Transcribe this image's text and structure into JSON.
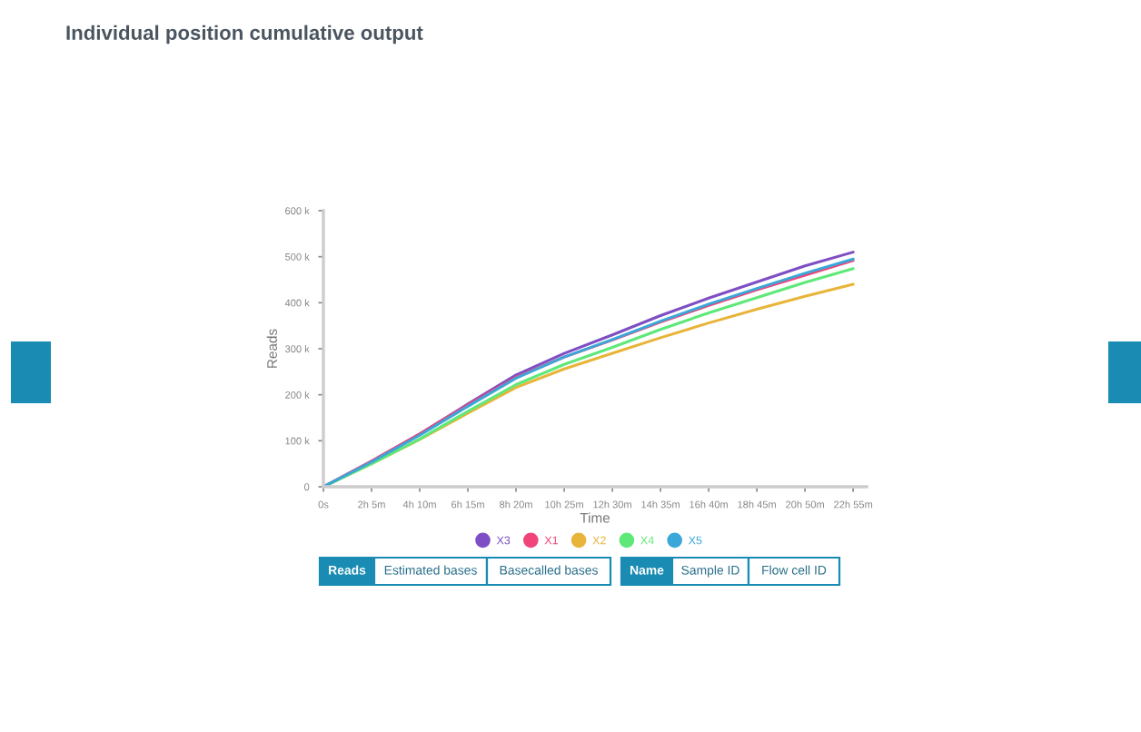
{
  "chart_data": {
    "type": "line",
    "title": "Individual position cumulative output",
    "xlabel": "Time",
    "ylabel": "Reads",
    "categories": [
      "0s",
      "2h 5m",
      "4h 10m",
      "6h 15m",
      "8h 20m",
      "10h 25m",
      "12h 30m",
      "14h 35m",
      "16h 40m",
      "18h 45m",
      "20h 50m",
      "22h 55m"
    ],
    "series": [
      {
        "name": "X3",
        "color": "#7e4fc4",
        "values": [
          0,
          55000,
          115000,
          180000,
          243000,
          290000,
          330000,
          372000,
          410000,
          445000,
          480000,
          510000
        ]
      },
      {
        "name": "X1",
        "color": "#f0457a",
        "values": [
          0,
          56000,
          115000,
          178000,
          238000,
          282000,
          319000,
          358000,
          394000,
          428000,
          460000,
          492000
        ]
      },
      {
        "name": "X2",
        "color": "#e8b43a",
        "values": [
          0,
          50000,
          103000,
          160000,
          216000,
          256000,
          290000,
          324000,
          356000,
          386000,
          414000,
          440000
        ]
      },
      {
        "name": "X4",
        "color": "#5fe87a",
        "values": [
          0,
          50000,
          104000,
          164000,
          222000,
          266000,
          303000,
          342000,
          378000,
          411000,
          444000,
          474000
        ]
      },
      {
        "name": "X5",
        "color": "#3aa7d8",
        "values": [
          0,
          54000,
          112000,
          175000,
          236000,
          282000,
          320000,
          360000,
          397000,
          431000,
          464000,
          495000
        ]
      }
    ],
    "ylim": [
      0,
      600000
    ],
    "yticks": [
      {
        "value": 0,
        "label": "0"
      },
      {
        "value": 100000,
        "label": "100 k"
      },
      {
        "value": 200000,
        "label": "200 k"
      },
      {
        "value": 300000,
        "label": "300 k"
      },
      {
        "value": 400000,
        "label": "400 k"
      },
      {
        "value": 500000,
        "label": "500 k"
      },
      {
        "value": 600000,
        "label": "600 k"
      }
    ],
    "grid": false,
    "legend": "bottom",
    "marker": "none",
    "line_style": "solid",
    "annotations": [
      "Reads",
      "Estimated bases",
      "Basecalled bases",
      "Name",
      "Sample ID",
      "Flow cell ID"
    ]
  }
}
